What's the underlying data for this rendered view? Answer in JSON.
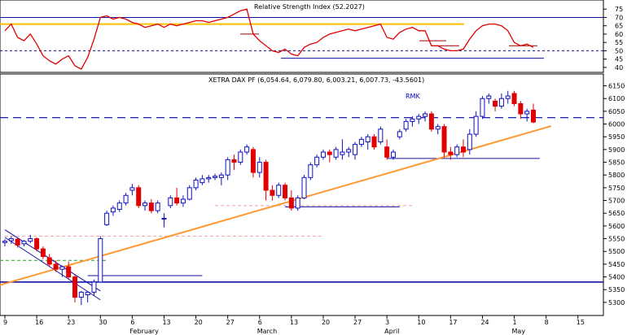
{
  "rsi_panel": {
    "title": "Relative Strength Index (52.2027)",
    "y_ticks": [
      40,
      45,
      50,
      55,
      60,
      65,
      70,
      75
    ],
    "ylim": [
      38,
      79
    ],
    "overbought": 70,
    "oversold": 50,
    "colors": {
      "rsi": "#e00000",
      "overbought": "#1010a0",
      "oversold_dash": "#1010a0",
      "orange": "#ffc000"
    }
  },
  "price_panel": {
    "title": "XETRA DAX PF (6,054.64, 6,079.80, 6,003.21, 6,007.73, -43.5601)",
    "annotation": "RMK",
    "y_ticks": [
      5300,
      5350,
      5400,
      5450,
      5500,
      5550,
      5600,
      5650,
      5700,
      5750,
      5800,
      5850,
      5900,
      5950,
      6000,
      6050,
      6100,
      6150
    ],
    "ylim": [
      5255,
      6190
    ],
    "support_line": 5380,
    "resistance_dashed": 6025,
    "colors": {
      "up": "#1010c0",
      "down": "#e00000",
      "trend": "#ff9933",
      "level": "#0000a0"
    }
  },
  "x_axis": {
    "tick_labels": [
      "9",
      "16",
      "23",
      "30",
      "6",
      "13",
      "20",
      "27",
      "6",
      "13",
      "20",
      "27",
      "3",
      "10",
      "17",
      "24",
      "1",
      "8",
      "15"
    ],
    "month_labels": [
      "February",
      "March",
      "April",
      "May"
    ]
  },
  "chart_data": {
    "type": "candlestick",
    "candles_ohlc": [
      [
        5535,
        5548,
        5520,
        5540
      ],
      [
        5542,
        5560,
        5530,
        5550
      ],
      [
        5548,
        5552,
        5515,
        5525
      ],
      [
        5530,
        5545,
        5520,
        5540
      ],
      [
        5540,
        5565,
        5532,
        5550
      ],
      [
        5550,
        5555,
        5500,
        5510
      ],
      [
        5510,
        5520,
        5470,
        5480
      ],
      [
        5475,
        5490,
        5440,
        5450
      ],
      [
        5450,
        5465,
        5420,
        5430
      ],
      [
        5430,
        5445,
        5400,
        5440
      ],
      [
        5440,
        5460,
        5390,
        5400
      ],
      [
        5400,
        5410,
        5300,
        5320
      ],
      [
        5320,
        5345,
        5290,
        5340
      ],
      [
        5330,
        5340,
        5300,
        5340
      ],
      [
        5340,
        5390,
        5325,
        5380
      ],
      [
        5380,
        5560,
        5380,
        5550
      ],
      [
        5605,
        5660,
        5600,
        5650
      ],
      [
        5655,
        5680,
        5640,
        5670
      ],
      [
        5665,
        5700,
        5655,
        5690
      ],
      [
        5690,
        5730,
        5680,
        5720
      ],
      [
        5740,
        5765,
        5720,
        5750
      ],
      [
        5750,
        5760,
        5670,
        5680
      ],
      [
        5680,
        5700,
        5660,
        5690
      ],
      [
        5690,
        5705,
        5650,
        5660
      ],
      [
        5660,
        5700,
        5650,
        5690
      ],
      [
        5630,
        5650,
        5595,
        5630
      ],
      [
        5680,
        5720,
        5670,
        5710
      ],
      [
        5710,
        5750,
        5680,
        5690
      ],
      [
        5690,
        5720,
        5675,
        5705
      ],
      [
        5705,
        5760,
        5700,
        5750
      ],
      [
        5750,
        5790,
        5740,
        5780
      ],
      [
        5770,
        5800,
        5760,
        5785
      ],
      [
        5785,
        5800,
        5770,
        5790
      ],
      [
        5790,
        5805,
        5780,
        5795
      ],
      [
        5790,
        5810,
        5760,
        5800
      ],
      [
        5800,
        5870,
        5780,
        5860
      ],
      [
        5860,
        5880,
        5820,
        5850
      ],
      [
        5850,
        5900,
        5840,
        5890
      ],
      [
        5890,
        5920,
        5880,
        5910
      ],
      [
        5900,
        5910,
        5790,
        5810
      ],
      [
        5810,
        5870,
        5790,
        5850
      ],
      [
        5850,
        5860,
        5700,
        5740
      ],
      [
        5740,
        5760,
        5700,
        5720
      ],
      [
        5720,
        5770,
        5710,
        5760
      ],
      [
        5760,
        5770,
        5700,
        5710
      ],
      [
        5710,
        5740,
        5660,
        5670
      ],
      [
        5670,
        5720,
        5660,
        5710
      ],
      [
        5710,
        5800,
        5705,
        5790
      ],
      [
        5790,
        5850,
        5780,
        5840
      ],
      [
        5840,
        5880,
        5830,
        5870
      ],
      [
        5870,
        5900,
        5860,
        5890
      ],
      [
        5890,
        5900,
        5850,
        5880
      ],
      [
        5870,
        5910,
        5860,
        5900
      ],
      [
        5880,
        5940,
        5860,
        5890
      ],
      [
        5890,
        5910,
        5870,
        5900
      ],
      [
        5880,
        5930,
        5860,
        5920
      ],
      [
        5920,
        5950,
        5910,
        5940
      ],
      [
        5930,
        5960,
        5900,
        5950
      ],
      [
        5950,
        5960,
        5900,
        5910
      ],
      [
        5930,
        5990,
        5920,
        5980
      ],
      [
        5910,
        5940,
        5860,
        5870
      ],
      [
        5870,
        5900,
        5860,
        5890
      ],
      [
        5950,
        5980,
        5940,
        5970
      ],
      [
        5980,
        6020,
        5970,
        6010
      ],
      [
        6010,
        6030,
        5990,
        6020
      ],
      [
        6020,
        6040,
        6000,
        6030
      ],
      [
        6030,
        6050,
        6010,
        6040
      ],
      [
        6040,
        6050,
        5970,
        5980
      ],
      [
        5980,
        6000,
        5960,
        5990
      ],
      [
        5990,
        6000,
        5870,
        5890
      ],
      [
        5890,
        5910,
        5860,
        5880
      ],
      [
        5880,
        5920,
        5870,
        5910
      ],
      [
        5910,
        5940,
        5870,
        5890
      ],
      [
        5900,
        5980,
        5880,
        5960
      ],
      [
        5960,
        6050,
        5950,
        6030
      ],
      [
        6030,
        6110,
        6020,
        6100
      ],
      [
        6100,
        6120,
        6080,
        6110
      ],
      [
        6090,
        6100,
        6050,
        6070
      ],
      [
        6070,
        6120,
        6060,
        6100
      ],
      [
        6100,
        6130,
        6080,
        6110
      ],
      [
        6120,
        6130,
        6070,
        6080
      ],
      [
        6080,
        6090,
        6020,
        6040
      ],
      [
        6040,
        6060,
        6010,
        6050
      ],
      [
        6054.64,
        6079.8,
        6003.21,
        6007.73
      ]
    ],
    "rsi": [
      62,
      66,
      58,
      56,
      60,
      54,
      47,
      44,
      42,
      45,
      47,
      41,
      39,
      46,
      57,
      70,
      71,
      69,
      70,
      69,
      67,
      66,
      64,
      65,
      66,
      64,
      66,
      65,
      66,
      67,
      68,
      68,
      67,
      68,
      69,
      70,
      72,
      74,
      75,
      60,
      56,
      53,
      50,
      49,
      51,
      48,
      47,
      52,
      54,
      55,
      58,
      60,
      61,
      62,
      63,
      62,
      63,
      64,
      65,
      66,
      58,
      57,
      61,
      63,
      64,
      62,
      62,
      53,
      53,
      51,
      50,
      50,
      51,
      57,
      62,
      65,
      66,
      66,
      65,
      62,
      55,
      53,
      54,
      52
    ],
    "rsi_hlines": [
      45,
      60,
      53,
      56,
      53
    ],
    "trendline_points": [
      [
        0,
        5368
      ],
      [
        84,
        5992
      ]
    ],
    "downtrend_channel": [
      [
        0,
        5585,
        15,
        5345
      ],
      [
        0,
        5555,
        15,
        5310
      ]
    ],
    "support_lines": [
      [
        60,
        84,
        5865
      ],
      [
        13,
        31,
        5405
      ],
      [
        44,
        62,
        5675
      ]
    ],
    "pink_dashed": [
      [
        0,
        50,
        5560
      ],
      [
        33,
        64,
        5680
      ]
    ],
    "green_dashed": [
      [
        0,
        16,
        5465
      ]
    ]
  }
}
